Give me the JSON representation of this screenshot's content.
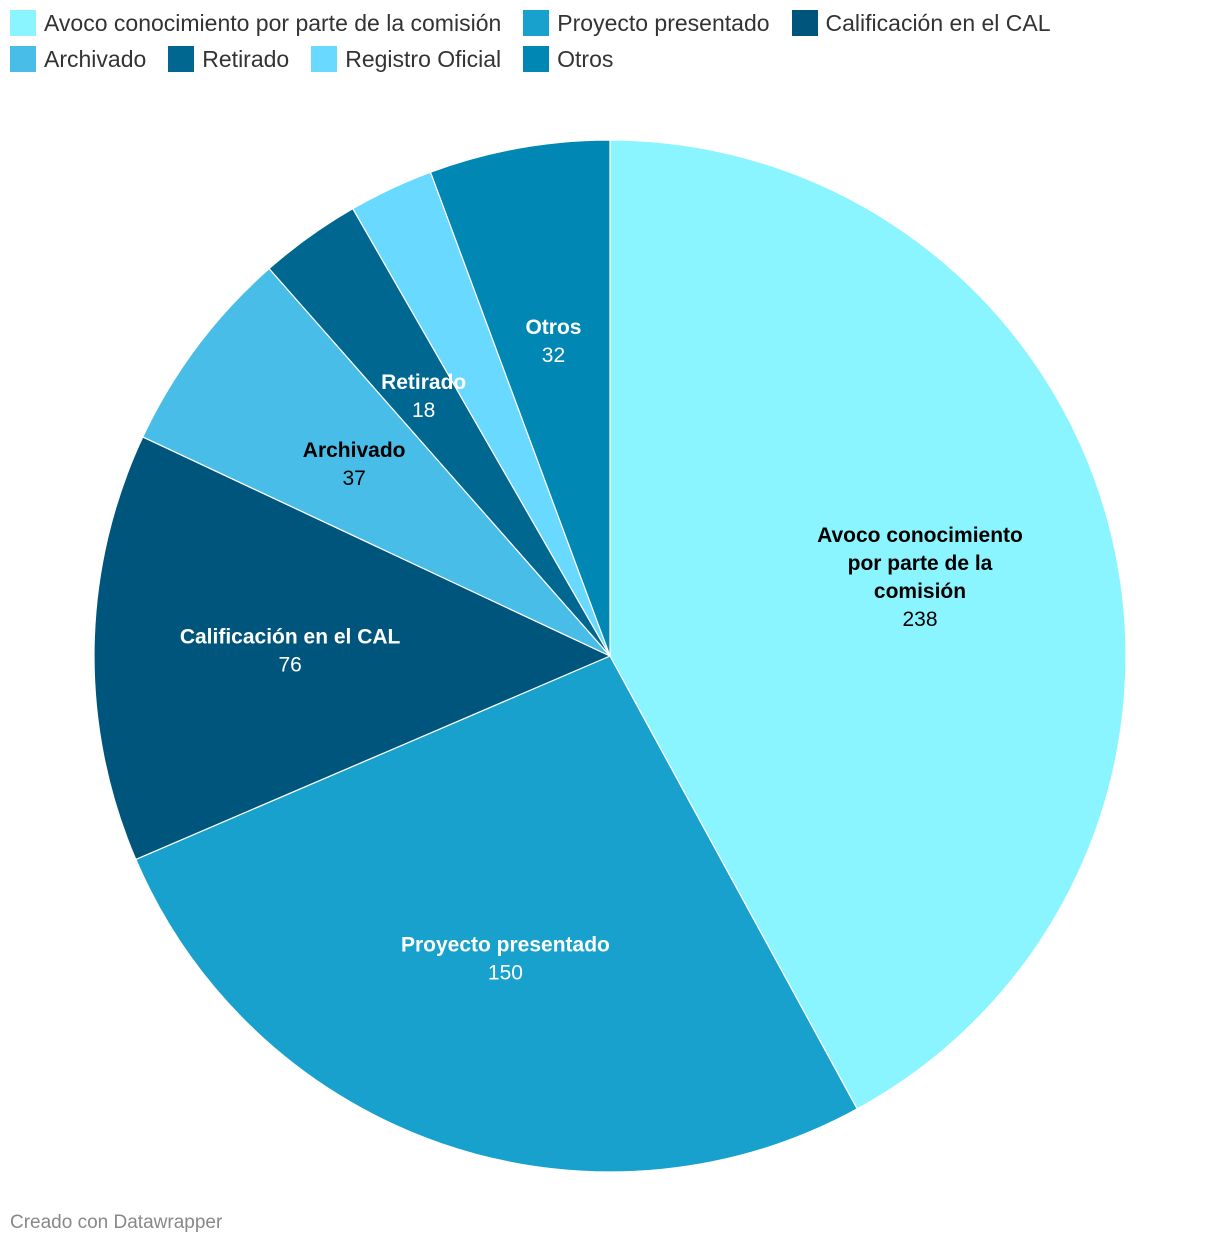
{
  "chart_data": {
    "type": "pie",
    "title": "",
    "legend_placement": "top-left",
    "slices": [
      {
        "label": "Avoco conocimiento por parte de la comisión",
        "value": 238,
        "color": "#8af4ff",
        "label_color": "#000000",
        "label_lines": [
          "Avoco conocimiento",
          "por parte de la",
          "comisión"
        ]
      },
      {
        "label": "Proyecto presentado",
        "value": 150,
        "color": "#19a1cd",
        "label_color": "#ffffff",
        "label_lines": [
          "Proyecto presentado"
        ]
      },
      {
        "label": "Calificación en el CAL",
        "value": 76,
        "color": "#00557c",
        "label_color": "#ffffff",
        "label_lines": [
          "Calificación en el CAL"
        ]
      },
      {
        "label": "Archivado",
        "value": 37,
        "color": "#48bde8",
        "label_color": "#000000",
        "label_lines": [
          "Archivado"
        ]
      },
      {
        "label": "Retirado",
        "value": 18,
        "color": "#006890",
        "label_color": "#ffffff",
        "label_lines": [
          "Retirado"
        ]
      },
      {
        "label": "Registro Oficial",
        "value": 15,
        "color": "#69d9ff",
        "label_color": "#000000",
        "label_lines": []
      },
      {
        "label": "Otros",
        "value": 32,
        "color": "#0087b3",
        "label_color": "#ffffff",
        "label_lines": [
          "Otros"
        ]
      }
    ]
  },
  "footer": {
    "credit": "Creado con Datawrapper"
  }
}
